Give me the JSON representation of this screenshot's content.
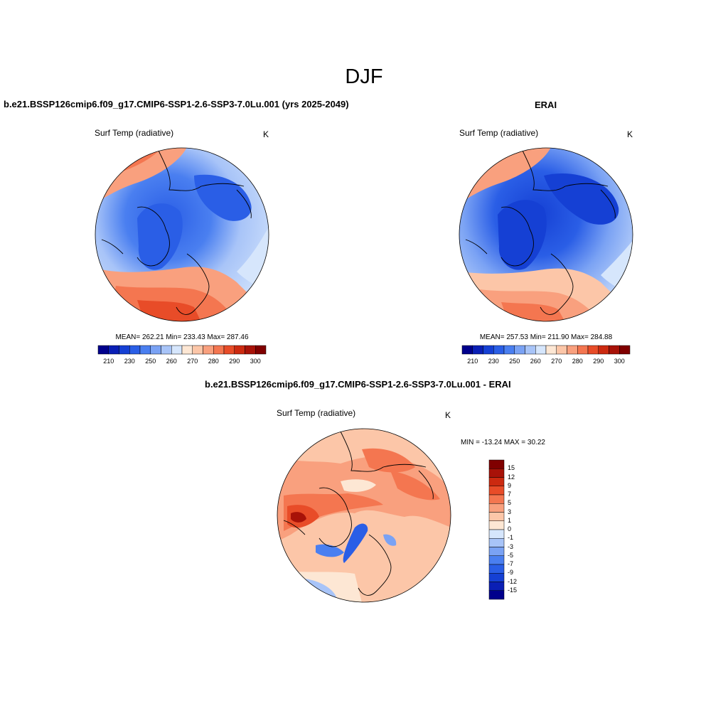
{
  "figure": {
    "season_title": "DJF"
  },
  "panels": {
    "model": {
      "title": "b.e21.BSSP126cmip6.f09_g17.CMIP6-SSP1-2.6-SSP3-7.0Lu.001 (yrs 2025-2049)",
      "variable": "Surf Temp (radiative)",
      "units": "K",
      "stats": "MEAN= 262.21  Min= 233.43  Max= 287.46"
    },
    "obs": {
      "title": "ERAI",
      "variable": "Surf Temp (radiative)",
      "units": "K",
      "stats": "MEAN= 257.53  Min= 211.90  Max= 284.88"
    },
    "diff": {
      "title": "b.e21.BSSP126cmip6.f09_g17.CMIP6-SSP1-2.6-SSP3-7.0Lu.001 - ERAI",
      "variable": "Surf Temp (radiative)",
      "units": "K",
      "minmax": "MIN = -13.24 MAX =  30.22"
    }
  },
  "colorbars": {
    "abs_ticks": [
      "210",
      "230",
      "250",
      "260",
      "270",
      "280",
      "290",
      "300"
    ],
    "abs_colors": [
      "#00008c",
      "#0a1fb5",
      "#1540d4",
      "#2a5ee6",
      "#4a7ff0",
      "#7aa2f4",
      "#a8c4f8",
      "#d6e6fc",
      "#fde7d4",
      "#fcc6a8",
      "#f9a07e",
      "#f47650",
      "#e84c28",
      "#cc2a10",
      "#a81208",
      "#800000"
    ],
    "diff_ticks": [
      "15",
      "12",
      "9",
      "7",
      "5",
      "3",
      "1",
      "0",
      "-1",
      "-3",
      "-5",
      "-7",
      "-9",
      "-12",
      "-15"
    ],
    "diff_colors": [
      "#800000",
      "#a81208",
      "#cc2a10",
      "#e84c28",
      "#f47650",
      "#f9a07e",
      "#fcc6a8",
      "#fde7d4",
      "#d6e6fc",
      "#a8c4f8",
      "#7aa2f4",
      "#4a7ff0",
      "#2a5ee6",
      "#1540d4",
      "#0a1fb5",
      "#00008c"
    ]
  }
}
